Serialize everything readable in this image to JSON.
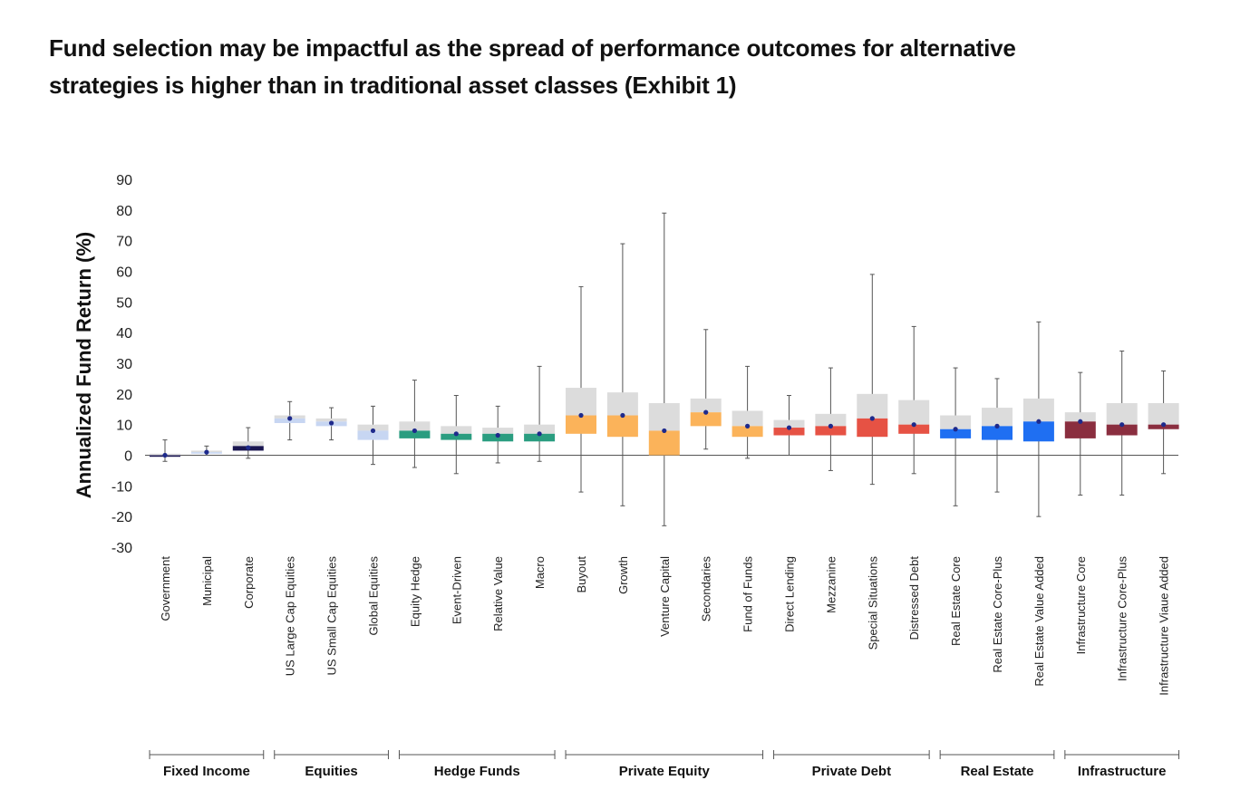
{
  "headline": {
    "line1": "Fund selection may be impactful as the spread of performance outcomes for alternative",
    "line2": "strategies is higher than in traditional asset classes (Exhibit 1)"
  },
  "chart_data": {
    "type": "box",
    "ylabel": "Annualized Fund Return (%)",
    "ylim": [
      -30,
      90
    ],
    "yticks": [
      90,
      80,
      70,
      60,
      50,
      40,
      30,
      20,
      10,
      0,
      -10,
      -20,
      -30
    ],
    "groups": [
      {
        "label": "Fixed Income",
        "strategies": [
          "Government",
          "Municipal",
          "Corporate"
        ]
      },
      {
        "label": "Equities",
        "strategies": [
          "US Large Cap Equities",
          "US Small Cap Equities",
          "Global Equities"
        ]
      },
      {
        "label": "Hedge Funds",
        "strategies": [
          "Equity Hedge",
          "Event-Driven",
          "Relative Value",
          "Macro"
        ]
      },
      {
        "label": "Private Equity",
        "strategies": [
          "Buyout",
          "Growth",
          "Venture Capital",
          "Secondaries",
          "Fund of Funds"
        ]
      },
      {
        "label": "Private Debt",
        "strategies": [
          "Direct Lending",
          "Mezzanine",
          "Special Situations",
          "Distressed Debt"
        ]
      },
      {
        "label": "Real Estate",
        "strategies": [
          "Real Estate Core",
          "Real Estate Core-Plus",
          "Real Estate Value Added"
        ]
      },
      {
        "label": "Infrastructure",
        "strategies": [
          "Infrastructure Core",
          "Infrastructure Core-Plus",
          "Infrastructure Viaue Added"
        ]
      }
    ],
    "series": [
      {
        "name": "Government",
        "min": -2,
        "q1": -0.5,
        "median": 0,
        "q3": 0.5,
        "max": 5,
        "mean": 0,
        "color": "#1a1650",
        "upper_color": "#dcdcdc"
      },
      {
        "name": "Municipal",
        "min": 0,
        "q1": 0.5,
        "median": 1,
        "q3": 1.5,
        "max": 3,
        "mean": 1,
        "color": "#c7d6f2",
        "upper_color": "#dcdcdc"
      },
      {
        "name": "Corporate",
        "min": -1,
        "q1": 1.5,
        "median": 3,
        "q3": 4.5,
        "max": 9,
        "mean": 2.5,
        "color": "#1a1650",
        "upper_color": "#dcdcdc"
      },
      {
        "name": "US Large Cap Equities",
        "min": 5,
        "q1": 10.5,
        "median": 12,
        "q3": 13,
        "max": 17.5,
        "mean": 12,
        "color": "#c7d6f2",
        "upper_color": "#dcdcdc"
      },
      {
        "name": "US Small Cap Equities",
        "min": 5,
        "q1": 9.5,
        "median": 11,
        "q3": 12,
        "max": 15.5,
        "mean": 10.5,
        "color": "#c7d6f2",
        "upper_color": "#dcdcdc"
      },
      {
        "name": "Global Equities",
        "min": -3,
        "q1": 5,
        "median": 8,
        "q3": 10,
        "max": 16,
        "mean": 8,
        "color": "#c7d6f2",
        "upper_color": "#dcdcdc"
      },
      {
        "name": "Equity Hedge",
        "min": -4,
        "q1": 5.5,
        "median": 8,
        "q3": 11,
        "max": 24.5,
        "mean": 8,
        "color": "#2a9d80",
        "upper_color": "#dcdcdc"
      },
      {
        "name": "Event-Driven",
        "min": -6,
        "q1": 5,
        "median": 7,
        "q3": 9.5,
        "max": 19.5,
        "mean": 7,
        "color": "#2a9d80",
        "upper_color": "#dcdcdc"
      },
      {
        "name": "Relative Value",
        "min": -2.5,
        "q1": 4.5,
        "median": 7,
        "q3": 9,
        "max": 16,
        "mean": 6.5,
        "color": "#2a9d80",
        "upper_color": "#dcdcdc"
      },
      {
        "name": "Macro",
        "min": -2,
        "q1": 4.5,
        "median": 7,
        "q3": 10,
        "max": 29,
        "mean": 7,
        "color": "#2a9d80",
        "upper_color": "#dcdcdc"
      },
      {
        "name": "Buyout",
        "min": -12,
        "q1": 7,
        "median": 13,
        "q3": 22,
        "max": 55,
        "mean": 13,
        "color": "#fbb35a",
        "upper_color": "#dcdcdc"
      },
      {
        "name": "Growth",
        "min": -16.5,
        "q1": 6,
        "median": 13,
        "q3": 20.5,
        "max": 69,
        "mean": 13,
        "color": "#fbb35a",
        "upper_color": "#dcdcdc"
      },
      {
        "name": "Venture Capital",
        "min": -23,
        "q1": 0,
        "median": 8,
        "q3": 17,
        "max": 79,
        "mean": 8,
        "color": "#fbb35a",
        "upper_color": "#dcdcdc"
      },
      {
        "name": "Secondaries",
        "min": 2,
        "q1": 9.5,
        "median": 14,
        "q3": 18.5,
        "max": 41,
        "mean": 14,
        "color": "#fbb35a",
        "upper_color": "#dcdcdc"
      },
      {
        "name": "Fund of Funds",
        "min": -1,
        "q1": 6,
        "median": 9.5,
        "q3": 14.5,
        "max": 29,
        "mean": 9.5,
        "color": "#fbb35a",
        "upper_color": "#dcdcdc"
      },
      {
        "name": "Direct Lending",
        "min": 0,
        "q1": 6.5,
        "median": 9,
        "q3": 11.5,
        "max": 19.5,
        "mean": 9,
        "color": "#e65244",
        "upper_color": "#dcdcdc"
      },
      {
        "name": "Mezzanine",
        "min": -5,
        "q1": 6.5,
        "median": 9.5,
        "q3": 13.5,
        "max": 28.5,
        "mean": 9.5,
        "color": "#e65244",
        "upper_color": "#dcdcdc"
      },
      {
        "name": "Special Situations",
        "min": -9.5,
        "q1": 6,
        "median": 12,
        "q3": 20,
        "max": 59,
        "mean": 12,
        "color": "#e65244",
        "upper_color": "#dcdcdc"
      },
      {
        "name": "Distressed Debt",
        "min": -6,
        "q1": 7,
        "median": 10,
        "q3": 18,
        "max": 42,
        "mean": 10,
        "color": "#e65244",
        "upper_color": "#dcdcdc"
      },
      {
        "name": "Real Estate Core",
        "min": -16.5,
        "q1": 5.5,
        "median": 8.5,
        "q3": 13,
        "max": 28.5,
        "mean": 8.5,
        "color": "#1f6ff2",
        "upper_color": "#dcdcdc"
      },
      {
        "name": "Real Estate Core-Plus",
        "min": -12,
        "q1": 5,
        "median": 9.5,
        "q3": 15.5,
        "max": 25,
        "mean": 9.5,
        "color": "#1f6ff2",
        "upper_color": "#dcdcdc"
      },
      {
        "name": "Real Estate Value Added",
        "min": -20,
        "q1": 4.5,
        "median": 11,
        "q3": 18.5,
        "max": 43.5,
        "mean": 11,
        "color": "#1f6ff2",
        "upper_color": "#dcdcdc"
      },
      {
        "name": "Infrastructure Core",
        "min": -13,
        "q1": 5.5,
        "median": 11,
        "q3": 14,
        "max": 27,
        "mean": 11,
        "color": "#8a2e3f",
        "upper_color": "#dcdcdc"
      },
      {
        "name": "Infrastructure Core-Plus",
        "min": -13,
        "q1": 6.5,
        "median": 10,
        "q3": 17,
        "max": 34,
        "mean": 10,
        "color": "#8a2e3f",
        "upper_color": "#dcdcdc"
      },
      {
        "name": "Infrastructure Viaue Added",
        "min": -6,
        "q1": 8.5,
        "median": 10,
        "q3": 17,
        "max": 27.5,
        "mean": 10,
        "color": "#8a2e3f",
        "upper_color": "#dcdcdc"
      }
    ],
    "mean_marker_color": "#1e2a8c",
    "legend": "none",
    "grid": false
  }
}
